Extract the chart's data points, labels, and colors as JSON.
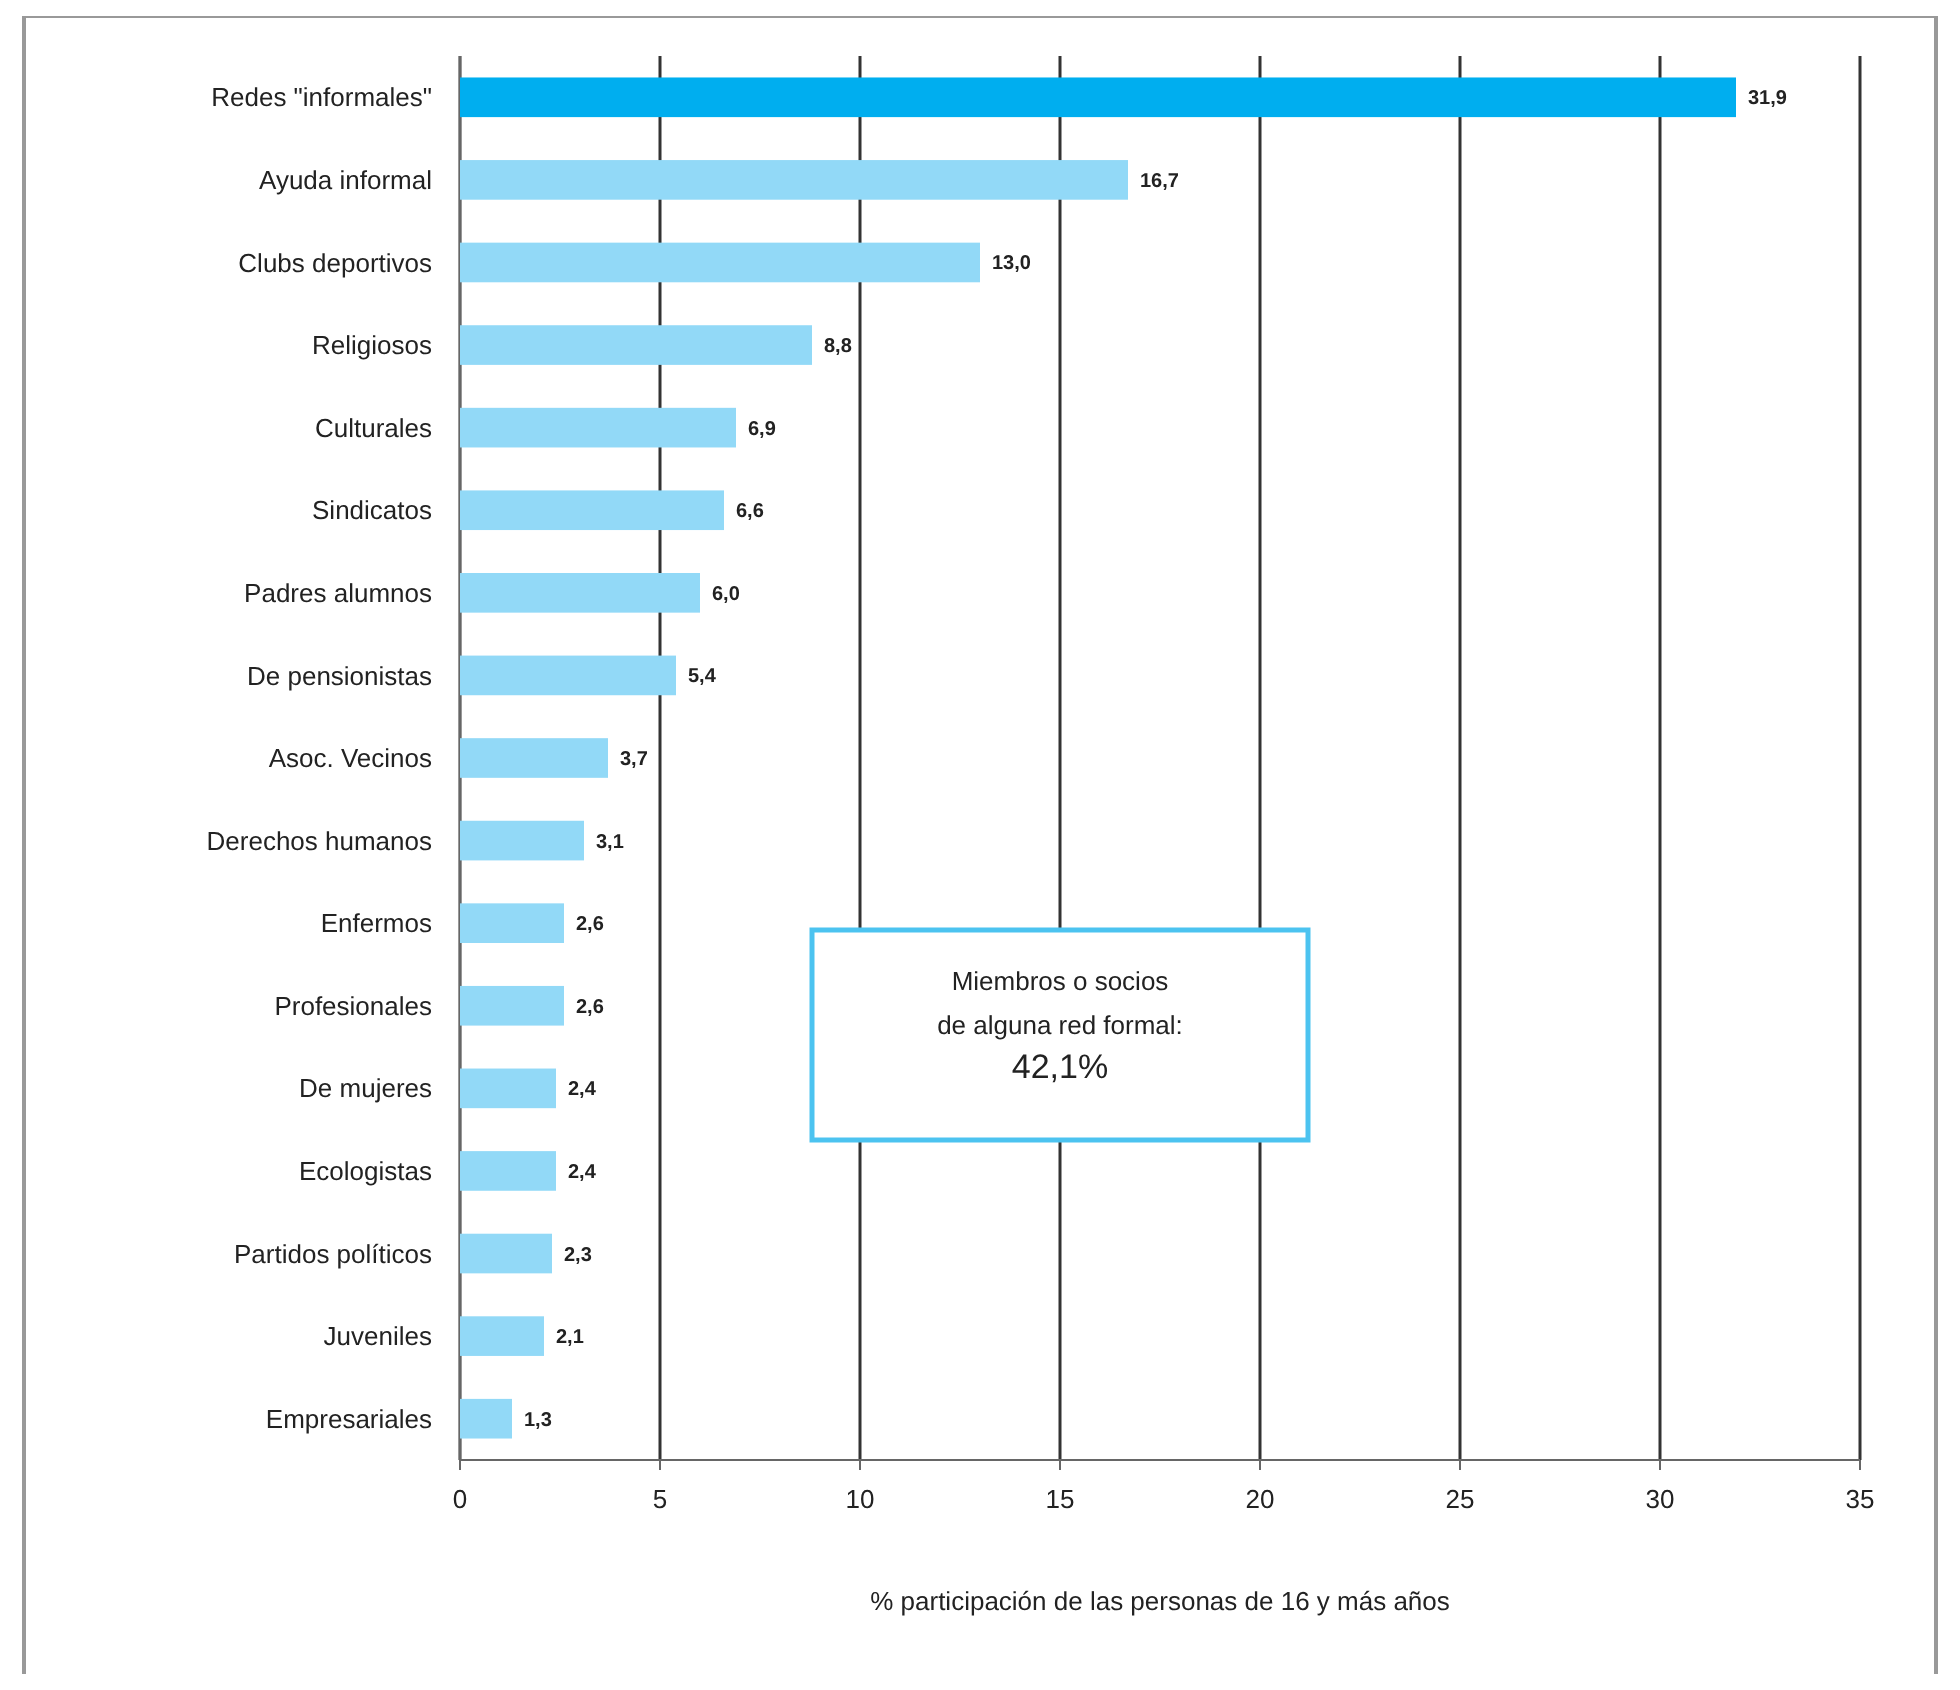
{
  "chart_data": {
    "type": "bar",
    "orientation": "horizontal",
    "xlabel": "% participación de las personas de 16 y más años",
    "categories": [
      "Redes \"informales\"",
      "Ayuda informal",
      "Clubs deportivos",
      "Religiosos",
      "Culturales",
      "Sindicatos",
      "Padres alumnos",
      "De pensionistas",
      "Asoc. Vecinos",
      "Derechos humanos",
      "Enfermos",
      "Profesionales",
      "De mujeres",
      "Ecologistas",
      "Partidos políticos",
      "Juveniles",
      "Empresariales"
    ],
    "values": [
      31.9,
      16.7,
      13.0,
      8.8,
      6.9,
      6.6,
      6.0,
      5.4,
      3.7,
      3.1,
      2.6,
      2.6,
      2.4,
      2.4,
      2.3,
      2.1,
      1.3
    ],
    "value_labels": [
      "31,9",
      "16,7",
      "13,0",
      "8,8",
      "6,9",
      "6,6",
      "6,0",
      "5,4",
      "3,7",
      "3,1",
      "2,6",
      "2,6",
      "2,4",
      "2,4",
      "2,3",
      "2,1",
      "1,3"
    ],
    "colors": [
      "#00aeef",
      "#92d9f7",
      "#92d9f7",
      "#92d9f7",
      "#92d9f7",
      "#92d9f7",
      "#92d9f7",
      "#92d9f7",
      "#92d9f7",
      "#92d9f7",
      "#92d9f7",
      "#92d9f7",
      "#92d9f7",
      "#92d9f7",
      "#92d9f7",
      "#92d9f7",
      "#92d9f7"
    ],
    "xlim": [
      0,
      35
    ],
    "xticks": [
      0,
      5,
      10,
      15,
      20,
      25,
      30,
      35
    ],
    "grid": "x",
    "annotations": [
      "Miembros o socios\nde alguna red formal:\n42,1%"
    ]
  }
}
